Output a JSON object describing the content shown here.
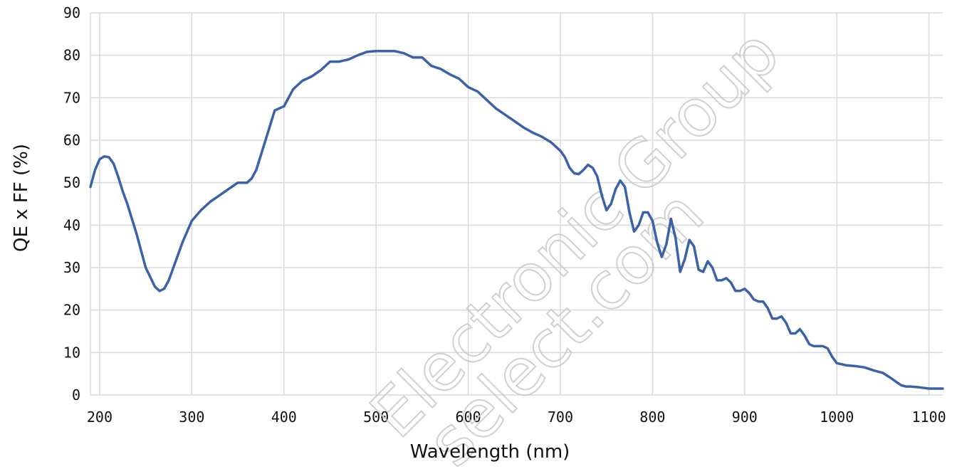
{
  "chart_data": {
    "type": "line",
    "title": "",
    "xlabel": "Wavelength (nm)",
    "ylabel": "QE x FF (%)",
    "xlim": [
      190,
      1115
    ],
    "ylim": [
      0,
      90
    ],
    "x_ticks": [
      200,
      300,
      400,
      500,
      600,
      700,
      800,
      900,
      1000,
      1100
    ],
    "y_ticks": [
      0,
      10,
      20,
      30,
      40,
      50,
      60,
      70,
      80,
      90
    ],
    "grid": true,
    "legend": "none",
    "color": "#3b62a8",
    "series": [
      {
        "x": [
          190,
          195,
          200,
          205,
          210,
          215,
          220,
          225,
          230,
          240,
          250,
          260,
          265,
          270,
          275,
          280,
          290,
          300,
          310,
          320,
          330,
          340,
          350,
          360,
          365,
          370,
          380,
          390,
          400,
          410,
          420,
          430,
          440,
          450,
          460,
          470,
          480,
          490,
          500,
          510,
          520,
          530,
          540,
          550,
          560,
          570,
          580,
          590,
          600,
          610,
          620,
          630,
          640,
          650,
          660,
          670,
          680,
          690,
          700,
          705,
          710,
          715,
          720,
          725,
          730,
          735,
          740,
          745,
          750,
          755,
          760,
          765,
          770,
          775,
          780,
          785,
          790,
          795,
          800,
          805,
          810,
          815,
          820,
          825,
          830,
          835,
          840,
          845,
          850,
          855,
          860,
          865,
          870,
          875,
          880,
          885,
          890,
          895,
          900,
          905,
          910,
          915,
          920,
          925,
          930,
          935,
          940,
          945,
          950,
          955,
          960,
          965,
          970,
          975,
          980,
          985,
          990,
          995,
          1000,
          1010,
          1020,
          1030,
          1040,
          1050,
          1055,
          1060,
          1065,
          1070,
          1075,
          1080,
          1090,
          1100,
          1105,
          1110,
          1115
        ],
        "y": [
          49,
          53,
          55.5,
          56.2,
          56,
          54.5,
          51.5,
          48,
          45,
          38,
          30,
          25.5,
          24.5,
          25,
          27,
          30,
          36,
          41,
          43.5,
          45.5,
          47,
          48.5,
          50,
          50,
          51,
          53,
          60,
          67,
          68,
          72,
          74,
          75,
          76.5,
          78.5,
          78.5,
          79,
          80,
          80.8,
          81,
          81,
          81,
          80.5,
          79.5,
          79.5,
          77.5,
          76.8,
          75.5,
          74.5,
          72.5,
          71.5,
          69.5,
          67.5,
          66,
          64.5,
          63,
          61.8,
          60.8,
          59.5,
          57.5,
          56,
          53.5,
          52.2,
          52,
          53,
          54.2,
          53.5,
          51.5,
          47,
          43.5,
          45,
          48.5,
          50.5,
          49,
          43,
          38.5,
          40,
          43,
          43,
          41,
          36,
          32.5,
          35.5,
          41.5,
          37,
          29,
          32,
          36.5,
          35,
          29.5,
          29,
          31.5,
          30,
          27,
          27,
          27.5,
          26.5,
          24.5,
          24.5,
          25,
          24,
          22.5,
          22,
          22,
          20.5,
          18,
          18,
          18.5,
          17,
          14.5,
          14.5,
          15.5,
          14,
          12,
          11.5,
          11.5,
          11.5,
          11,
          9,
          7.5,
          7,
          6.8,
          6.5,
          5.8,
          5.2,
          4.5,
          3.8,
          3,
          2.3,
          2,
          2,
          1.8,
          1.5,
          1.5,
          1.5,
          1.5
        ]
      }
    ]
  },
  "watermark": {
    "line1": "Electronic Group",
    "line2": "select.com"
  }
}
